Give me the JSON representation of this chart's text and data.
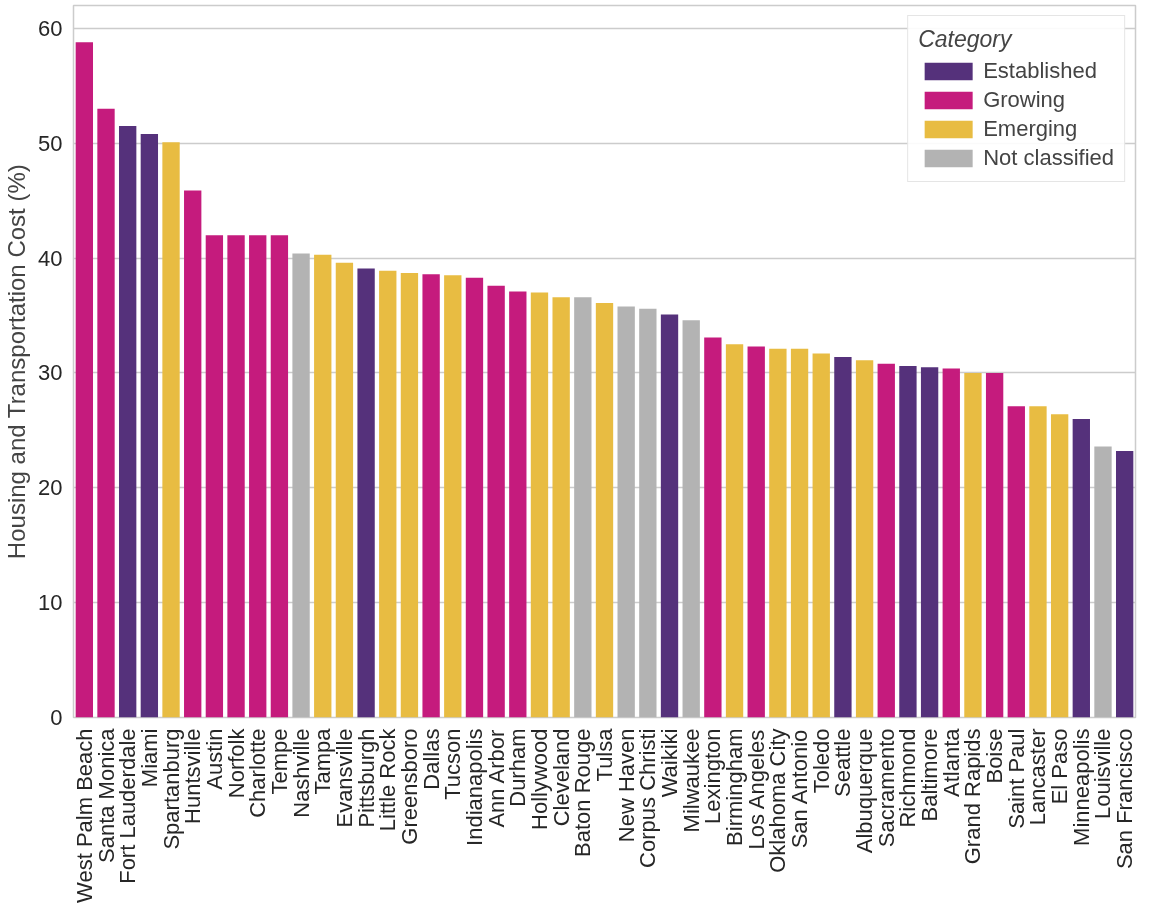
{
  "chart_data": {
    "type": "bar",
    "ylabel": "Housing and Transportation Cost (%)",
    "legend_title": "Category",
    "legend": "top right",
    "grid": "y",
    "stacked": true,
    "categories": [
      "West Palm Beach",
      "Santa Monica",
      "Fort Lauderdale",
      "Miami",
      "Spartanburg",
      "Huntsville",
      "Austin",
      "Norfolk",
      "Charlotte",
      "Tempe",
      "Nashville",
      "Tampa",
      "Evansville",
      "Pittsburgh",
      "Little Rock",
      "Greensboro",
      "Dallas",
      "Tucson",
      "Indianapolis",
      "Ann Arbor",
      "Durham",
      "Hollywood",
      "Cleveland",
      "Baton Rouge",
      "Tulsa",
      "New Haven",
      "Corpus Christi",
      "Waikiki",
      "Milwaukee",
      "Lexington",
      "Birmingham",
      "Los Angeles",
      "Oklahoma City",
      "San Antonio",
      "Toledo",
      "Seattle",
      "Albuquerque",
      "Sacramento",
      "Richmond",
      "Baltimore",
      "Atlanta",
      "Grand Rapids",
      "Boise",
      "Saint Paul",
      "Lancaster",
      "El Paso",
      "Minneapolis",
      "Louisville",
      "San Francisco"
    ],
    "ylim": [
      0,
      62
    ],
    "yticks": [
      0,
      10,
      20,
      30,
      40,
      50,
      60
    ],
    "series": [
      {
        "name": "Established",
        "color": "#55317b",
        "values": [
          null,
          null,
          51.5,
          50.8,
          null,
          null,
          null,
          null,
          null,
          null,
          null,
          null,
          null,
          39.1,
          null,
          null,
          null,
          null,
          null,
          null,
          null,
          null,
          null,
          null,
          null,
          null,
          null,
          35.1,
          null,
          null,
          null,
          null,
          null,
          null,
          null,
          31.4,
          null,
          null,
          30.6,
          30.5,
          null,
          null,
          null,
          null,
          null,
          null,
          26.0,
          null,
          23.2
        ]
      },
      {
        "name": "Growing",
        "color": "#c51b7d",
        "values": [
          58.8,
          53.0,
          null,
          null,
          null,
          45.9,
          42.0,
          42.0,
          42.0,
          42.0,
          null,
          null,
          null,
          null,
          null,
          null,
          38.6,
          null,
          38.3,
          37.6,
          37.1,
          null,
          null,
          null,
          null,
          null,
          null,
          null,
          null,
          33.1,
          null,
          32.3,
          null,
          null,
          null,
          null,
          null,
          30.8,
          null,
          null,
          30.4,
          null,
          30.0,
          27.1,
          null,
          null,
          null,
          null,
          null
        ]
      },
      {
        "name": "Emerging",
        "color": "#e8bc42",
        "values": [
          null,
          null,
          null,
          null,
          50.1,
          null,
          null,
          null,
          null,
          null,
          null,
          40.3,
          39.6,
          null,
          38.9,
          38.7,
          null,
          38.5,
          null,
          null,
          null,
          37.0,
          36.6,
          null,
          36.1,
          null,
          null,
          null,
          null,
          null,
          32.5,
          null,
          32.1,
          32.1,
          31.7,
          null,
          31.1,
          null,
          null,
          null,
          null,
          30.0,
          null,
          null,
          27.1,
          26.4,
          null,
          null,
          null
        ]
      },
      {
        "name": "Not classified",
        "color": "#b3b3b3",
        "values": [
          null,
          null,
          null,
          null,
          null,
          null,
          null,
          null,
          null,
          null,
          40.4,
          null,
          null,
          null,
          null,
          null,
          null,
          null,
          null,
          null,
          null,
          null,
          null,
          36.6,
          null,
          35.8,
          35.6,
          null,
          34.6,
          null,
          null,
          null,
          null,
          null,
          null,
          null,
          null,
          null,
          null,
          null,
          null,
          null,
          null,
          null,
          null,
          null,
          null,
          23.6,
          null
        ]
      }
    ]
  }
}
